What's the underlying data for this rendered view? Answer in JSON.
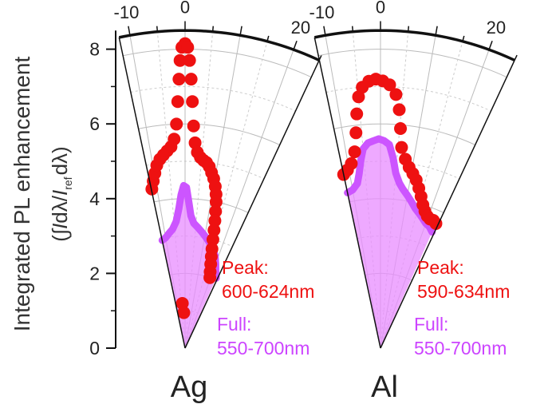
{
  "chart_data": {
    "type": "polar-sector-scatter",
    "ylabel_line1": "Integrated PL enhancement",
    "ylabel_line2": {
      "open": "(",
      "integral": "∫",
      "I1": "I",
      "dl1": "dλ/",
      "I2": "I",
      "sub": "ref",
      "dl2": "dλ",
      "close": ")"
    },
    "radial_axis": {
      "ticks": [
        "0",
        "2",
        "4",
        "6",
        "8"
      ],
      "values": [
        0,
        2,
        4,
        6,
        8
      ],
      "range": [
        0,
        8.5
      ]
    },
    "angular_axis": {
      "ticks": [
        "-10",
        "0",
        "20"
      ],
      "values": [
        -10,
        0,
        20
      ],
      "range_deg": [
        -12,
        25
      ],
      "unit": "deg"
    },
    "panels": [
      {
        "label": "Ag",
        "annotations": {
          "peak_title": "Peak:",
          "peak_range": "600-624nm",
          "full_title": "Full:",
          "full_range": "550-700nm"
        },
        "peak_series": {
          "color": "#ee1111",
          "points": [
            [
              -11.8,
              4.35
            ],
            [
              -10.8,
              4.55
            ],
            [
              -9.8,
              4.75
            ],
            [
              -8.8,
              4.95
            ],
            [
              -7.6,
              5.1
            ],
            [
              -6.4,
              5.2
            ],
            [
              -5.2,
              5.3
            ],
            [
              -4.0,
              5.4
            ],
            [
              -3.0,
              5.6
            ],
            [
              -2.2,
              6.0
            ],
            [
              -1.7,
              6.6
            ],
            [
              -1.3,
              7.2
            ],
            [
              -1.0,
              7.7
            ],
            [
              -0.6,
              8.05
            ],
            [
              0.0,
              8.15
            ],
            [
              0.5,
              8.05
            ],
            [
              0.9,
              7.7
            ],
            [
              1.3,
              7.2
            ],
            [
              1.7,
              6.6
            ],
            [
              2.2,
              5.95
            ],
            [
              2.8,
              5.5
            ],
            [
              3.6,
              5.25
            ],
            [
              4.6,
              5.12
            ],
            [
              5.6,
              5.05
            ],
            [
              6.6,
              5.0
            ],
            [
              7.6,
              4.9
            ],
            [
              8.6,
              4.75
            ],
            [
              9.6,
              4.6
            ],
            [
              10.6,
              4.4
            ],
            [
              11.4,
              4.2
            ],
            [
              12.0,
              4.0
            ],
            [
              12.6,
              3.75
            ],
            [
              13.2,
              3.5
            ],
            [
              13.8,
              3.25
            ],
            [
              14.4,
              3.0
            ],
            [
              15.2,
              2.75
            ],
            [
              16.0,
              2.55
            ],
            [
              17.0,
              2.35
            ],
            [
              18.2,
              2.15
            ],
            [
              19.4,
              2.0
            ],
            [
              -3.5,
              1.2
            ],
            [
              -2.0,
              0.95
            ]
          ]
        },
        "full_series": {
          "color": "#cc55ff",
          "fill": "#e88cff",
          "points": [
            [
              -12.0,
              2.95
            ],
            [
              -10.0,
              3.0
            ],
            [
              -8.0,
              3.1
            ],
            [
              -6.0,
              3.2
            ],
            [
              -4.0,
              3.4
            ],
            [
              -2.5,
              3.75
            ],
            [
              -1.5,
              4.1
            ],
            [
              -0.5,
              4.35
            ],
            [
              0.5,
              4.3
            ],
            [
              1.5,
              3.9
            ],
            [
              2.5,
              3.55
            ],
            [
              4.0,
              3.35
            ],
            [
              6.0,
              3.25
            ],
            [
              8.0,
              3.15
            ],
            [
              10.0,
              3.05
            ],
            [
              12.0,
              2.95
            ],
            [
              14.0,
              2.85
            ],
            [
              16.0,
              2.75
            ],
            [
              18.0,
              2.6
            ],
            [
              20.0,
              2.4
            ],
            [
              22.0,
              2.2
            ],
            [
              24.0,
              2.05
            ]
          ]
        }
      },
      {
        "label": "Al",
        "annotations": {
          "peak_title": "Peak:",
          "peak_range": "590-634nm",
          "full_title": "Full:",
          "full_range": "550-700nm"
        },
        "peak_series": {
          "color": "#ee1111",
          "points": [
            [
              -12.0,
              4.75
            ],
            [
              -10.5,
              4.85
            ],
            [
              -9.0,
              5.0
            ],
            [
              -7.5,
              5.3
            ],
            [
              -6.5,
              5.8
            ],
            [
              -5.8,
              6.3
            ],
            [
              -5.0,
              6.75
            ],
            [
              -4.0,
              7.0
            ],
            [
              -2.5,
              7.15
            ],
            [
              -1.0,
              7.2
            ],
            [
              0.5,
              7.15
            ],
            [
              2.0,
              7.05
            ],
            [
              3.5,
              6.8
            ],
            [
              4.5,
              6.4
            ],
            [
              5.2,
              5.9
            ],
            [
              6.0,
              5.4
            ],
            [
              7.5,
              5.1
            ],
            [
              9.0,
              4.9
            ],
            [
              10.5,
              4.75
            ],
            [
              12.0,
              4.6
            ],
            [
              13.5,
              4.4
            ],
            [
              15.0,
              4.2
            ],
            [
              16.5,
              4.0
            ],
            [
              18.0,
              3.85
            ],
            [
              19.5,
              3.75
            ],
            [
              21.0,
              3.7
            ],
            [
              22.5,
              3.7
            ],
            [
              24.0,
              3.65
            ]
          ]
        },
        "full_series": {
          "color": "#cc55ff",
          "fill": "#e88cff",
          "points": [
            [
              -12.0,
              4.25
            ],
            [
              -10.0,
              4.3
            ],
            [
              -8.0,
              4.45
            ],
            [
              -7.0,
              4.7
            ],
            [
              -6.0,
              5.05
            ],
            [
              -5.0,
              5.35
            ],
            [
              -3.5,
              5.5
            ],
            [
              -2.0,
              5.55
            ],
            [
              -0.5,
              5.6
            ],
            [
              1.0,
              5.55
            ],
            [
              2.5,
              5.45
            ],
            [
              3.8,
              5.1
            ],
            [
              5.0,
              4.7
            ],
            [
              6.5,
              4.45
            ],
            [
              8.0,
              4.3
            ],
            [
              10.0,
              4.15
            ],
            [
              12.0,
              4.0
            ],
            [
              14.0,
              3.85
            ],
            [
              16.0,
              3.75
            ],
            [
              18.0,
              3.65
            ],
            [
              20.0,
              3.55
            ],
            [
              22.0,
              3.5
            ],
            [
              24.0,
              3.4
            ]
          ]
        }
      }
    ]
  }
}
